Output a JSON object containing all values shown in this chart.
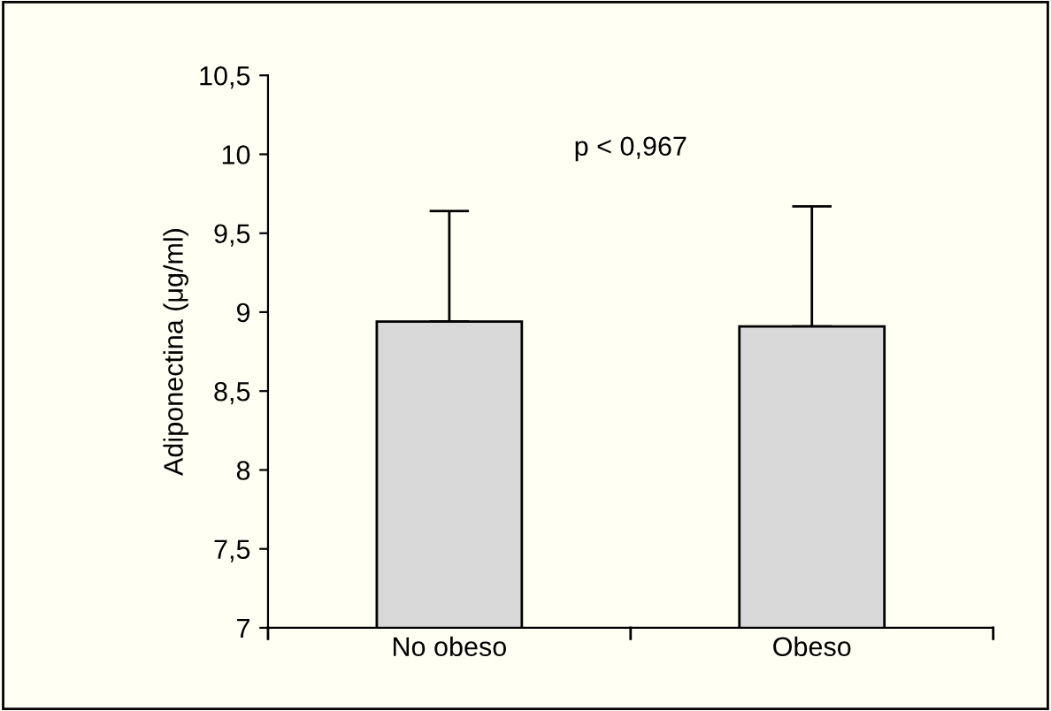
{
  "chart_data": {
    "type": "bar",
    "ylabel": "Adiponectina (μg/ml)",
    "categories": [
      "No obeso",
      "Obeso"
    ],
    "values": [
      8.94,
      8.91
    ],
    "errors": [
      [
        8.94,
        9.64
      ],
      [
        8.91,
        9.67
      ]
    ],
    "color": "#d9d9d9",
    "ylim": [
      7,
      10.5
    ],
    "yticks": [
      7,
      {
        "value": 7.5,
        "label": "7,5"
      },
      8,
      {
        "value": 8.5,
        "label": "8,5"
      },
      9,
      {
        "value": 9.5,
        "label": "9,5"
      },
      10,
      {
        "value": 10.5,
        "label": "10,5"
      }
    ],
    "annotations": [
      "p < 0,967"
    ],
    "grid": false,
    "legend": false
  }
}
